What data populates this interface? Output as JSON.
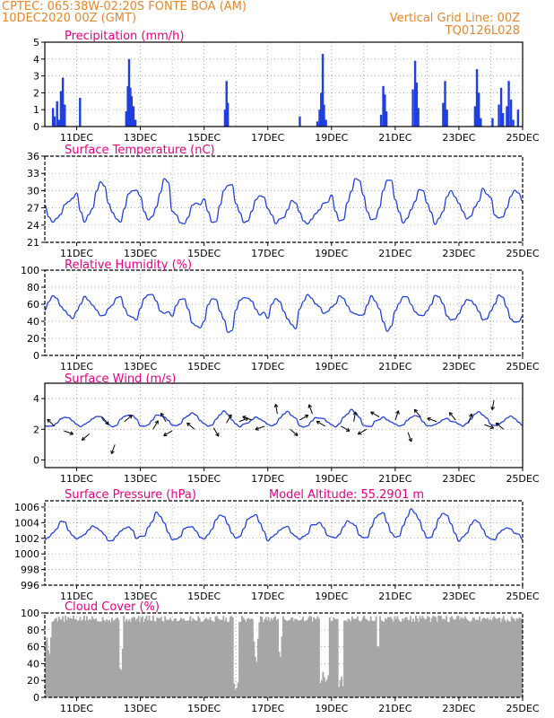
{
  "header": {
    "station_line": "CPTEC:   065:38W-02:20S   FONTE BOA (AM)",
    "date_line": "10DEC2020 00Z (GMT)",
    "grid_note": "Vertical Grid Line: 00Z",
    "model_code": "TQ0126L028"
  },
  "colors": {
    "header": "#e8862a",
    "title": "#e6007e",
    "line": "#1f3fe0",
    "cloud": "#a6a6a6",
    "grid": "#888888"
  },
  "x_axis": {
    "start": "10DEC2020 00Z",
    "end": "25DEC2020 00Z",
    "tick_labels": [
      "11DEC",
      "13DEC",
      "15DEC",
      "17DEC",
      "19DEC",
      "21DEC",
      "23DEC",
      "25DEC"
    ],
    "tick_days": [
      11,
      13,
      15,
      17,
      19,
      21,
      23,
      25
    ]
  },
  "chart_data": [
    {
      "type": "bar",
      "title": "Precipitation (mm/h)",
      "ylim": [
        0,
        5
      ],
      "yticks": [
        0,
        1,
        2,
        3,
        4,
        5
      ],
      "x_unit": "day of DEC 2020",
      "events": [
        [
          10.25,
          1.1
        ],
        [
          10.3,
          0.6
        ],
        [
          10.38,
          1.5
        ],
        [
          10.44,
          0.4
        ],
        [
          10.5,
          2.1
        ],
        [
          10.56,
          2.9
        ],
        [
          10.62,
          1.3
        ],
        [
          11.1,
          1.7
        ],
        [
          12.55,
          0.9
        ],
        [
          12.6,
          2.4
        ],
        [
          12.64,
          4.0
        ],
        [
          12.68,
          2.3
        ],
        [
          12.72,
          1.8
        ],
        [
          12.78,
          1.2
        ],
        [
          12.84,
          0.4
        ],
        [
          15.65,
          1.0
        ],
        [
          15.7,
          2.7
        ],
        [
          15.74,
          1.4
        ],
        [
          18.0,
          0.6
        ],
        [
          18.55,
          0.3
        ],
        [
          18.62,
          1.0
        ],
        [
          18.67,
          2.0
        ],
        [
          18.72,
          4.3
        ],
        [
          18.76,
          1.3
        ],
        [
          18.82,
          0.4
        ],
        [
          20.55,
          0.7
        ],
        [
          20.62,
          2.4
        ],
        [
          20.67,
          1.9
        ],
        [
          20.72,
          0.9
        ],
        [
          21.55,
          2.2
        ],
        [
          21.62,
          3.9
        ],
        [
          21.67,
          2.6
        ],
        [
          21.72,
          1.1
        ],
        [
          22.5,
          1.4
        ],
        [
          22.56,
          2.7
        ],
        [
          22.62,
          1.0
        ],
        [
          23.5,
          1.2
        ],
        [
          23.56,
          3.4
        ],
        [
          23.62,
          2.0
        ],
        [
          23.68,
          0.5
        ],
        [
          24.05,
          0.5
        ],
        [
          24.25,
          1.3
        ],
        [
          24.32,
          2.3
        ],
        [
          24.38,
          0.8
        ],
        [
          24.5,
          1.2
        ],
        [
          24.56,
          2.7
        ],
        [
          24.63,
          1.6
        ],
        [
          24.7,
          0.4
        ],
        [
          24.85,
          1.0
        ]
      ]
    },
    {
      "type": "line",
      "title": "Surface Temperature (nC)",
      "ylim": [
        21,
        36
      ],
      "yticks": [
        21,
        24,
        27,
        30,
        33,
        36
      ],
      "base": 24.0,
      "amp": 4.8,
      "peak_hour": 19,
      "seed": 7
    },
    {
      "type": "line",
      "title": "Relative Humidity (%)",
      "ylim": [
        0,
        100
      ],
      "yticks": [
        0,
        20,
        40,
        60,
        80,
        100
      ],
      "base": 72,
      "amp": -28,
      "peak_hour": 19,
      "seed": 11
    },
    {
      "type": "line",
      "title": "Surface Wind (m/s)",
      "ylim": [
        -0.5,
        5
      ],
      "yticks": [
        0,
        2,
        4
      ],
      "base": 2.1,
      "amp": 0.7,
      "peak_hour": 15,
      "seed": 23,
      "arrows": [
        [
          10.3,
          2.2,
          135
        ],
        [
          10.6,
          1.9,
          -20
        ],
        [
          11.4,
          1.7,
          220
        ],
        [
          11.8,
          2.8,
          310
        ],
        [
          12.2,
          1.0,
          250
        ],
        [
          12.5,
          2.5,
          40
        ],
        [
          13.4,
          2.0,
          60
        ],
        [
          13.8,
          2.5,
          120
        ],
        [
          14.0,
          1.9,
          210
        ],
        [
          14.7,
          2.0,
          140
        ],
        [
          15.3,
          2.1,
          -60
        ],
        [
          15.7,
          2.4,
          60
        ],
        [
          16.1,
          2.5,
          20
        ],
        [
          16.5,
          2.6,
          160
        ],
        [
          16.9,
          2.2,
          200
        ],
        [
          17.3,
          3.0,
          100
        ],
        [
          17.7,
          2.0,
          -40
        ],
        [
          18.0,
          2.6,
          30
        ],
        [
          18.4,
          3.0,
          110
        ],
        [
          18.8,
          2.2,
          150
        ],
        [
          19.3,
          2.2,
          -30
        ],
        [
          19.7,
          2.5,
          80
        ],
        [
          20.1,
          2.0,
          210
        ],
        [
          20.5,
          2.8,
          150
        ],
        [
          21.0,
          2.6,
          70
        ],
        [
          21.4,
          1.8,
          -70
        ],
        [
          21.8,
          2.8,
          130
        ],
        [
          22.3,
          2.5,
          160
        ],
        [
          22.9,
          2.6,
          130
        ],
        [
          23.3,
          2.4,
          70
        ],
        [
          23.8,
          2.3,
          -20
        ],
        [
          24.1,
          3.9,
          260
        ],
        [
          24.4,
          2.0,
          140
        ]
      ]
    },
    {
      "type": "line",
      "title": "Surface Pressure (hPa)",
      "subtitle": "Model Altitude: 55.2901 m",
      "ylim": [
        996,
        1006.8
      ],
      "yticks": [
        996,
        998,
        1000,
        1002,
        1004,
        1006
      ],
      "base": 1001.6,
      "amp": 2.4,
      "peak_hour": 13,
      "seed": 31
    },
    {
      "type": "area",
      "title": "Cloud Cover (%)",
      "ylim": [
        0,
        100
      ],
      "yticks": [
        0,
        20,
        40,
        60,
        80,
        100
      ],
      "base": 93,
      "seed": 5,
      "gaps": [
        [
          10.0,
          10.2,
          45
        ],
        [
          12.3,
          12.45,
          30
        ],
        [
          15.9,
          16.05,
          2
        ],
        [
          16.5,
          16.7,
          40
        ],
        [
          17.3,
          17.45,
          45
        ],
        [
          18.6,
          18.9,
          5
        ],
        [
          19.2,
          19.35,
          10
        ],
        [
          20.4,
          20.5,
          35
        ]
      ]
    }
  ]
}
